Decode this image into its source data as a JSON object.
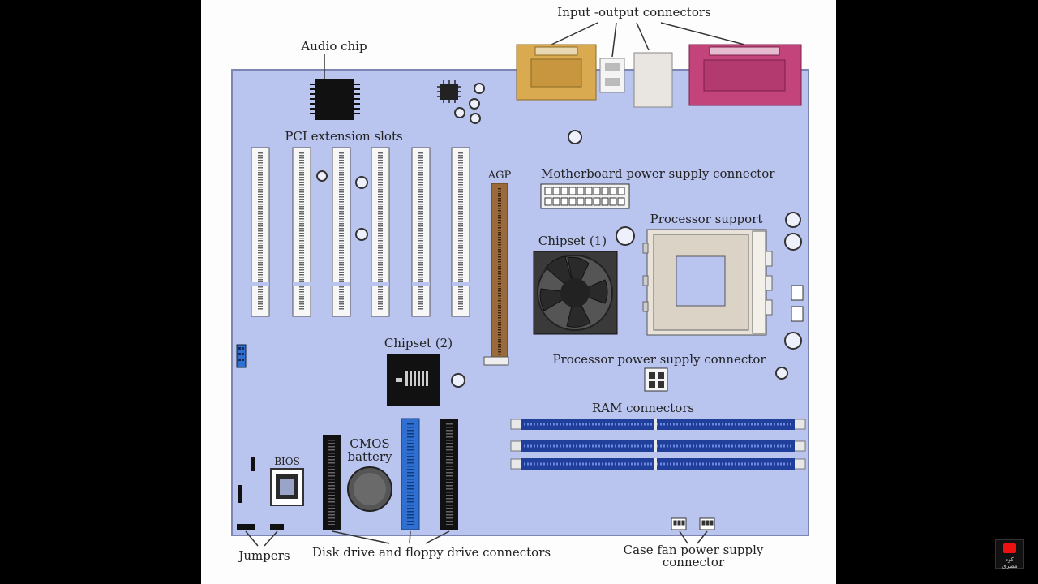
{
  "diagram": {
    "labels": {
      "io_connectors": "Input -output connectors",
      "audio_chip": "Audio chip",
      "pci_slots": "PCI extension slots",
      "agp": "AGP",
      "mb_power": "Motherboard power supply connector",
      "processor_support": "Processor support",
      "chipset1": "Chipset (1)",
      "chipset2": "Chipset (2)",
      "proc_power": "Processor power supply connector",
      "ram": "RAM connectors",
      "cmos_line1": "CMOS",
      "cmos_line2": "battery",
      "bios": "BIOS",
      "jumpers": "Jumpers",
      "drive_connectors": "Disk drive and floppy drive connectors",
      "fan_line1": "Case fan power supply",
      "fan_line2": "connector"
    },
    "colors": {
      "board": "#b9c4ef",
      "io_parallel": "#d9aa50",
      "io_serial": "#c2447a",
      "ram_slot": "#1f3f9a",
      "ide_blue": "#2f6fd0"
    }
  },
  "badge": {
    "text": "كود مصري"
  }
}
